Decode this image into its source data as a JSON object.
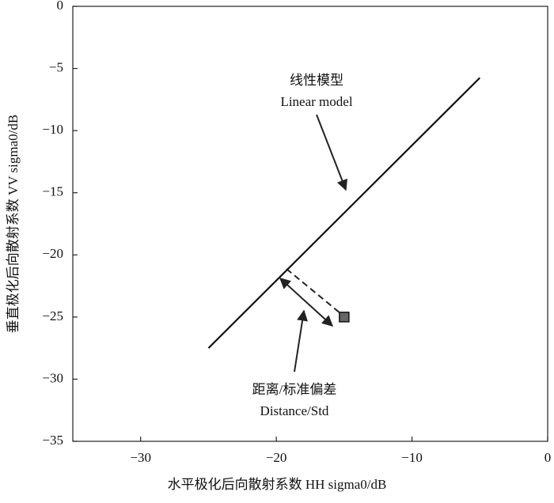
{
  "chart_data": {
    "type": "line",
    "xlabel": "水平极化后向散射系数 HH sigma0/dB",
    "ylabel": "垂直极化后向散射系数 VV sigma0/dB",
    "xlim": [
      -35,
      0
    ],
    "ylim": [
      -35,
      0
    ],
    "xticks": [
      {
        "value": -30,
        "label": "−30"
      },
      {
        "value": -20,
        "label": "−20"
      },
      {
        "value": -10,
        "label": "−10"
      },
      0
    ],
    "yticks": [
      {
        "value": -35,
        "label": "−35"
      },
      {
        "value": -30,
        "label": "−30"
      },
      {
        "value": -25,
        "label": "−25"
      },
      {
        "value": -20,
        "label": "−20"
      },
      {
        "value": -15,
        "label": "−15"
      },
      {
        "value": -10,
        "label": "−10"
      },
      {
        "value": -5,
        "label": "−5"
      },
      0
    ],
    "series": [
      {
        "x": [
          -25,
          -5
        ],
        "values": [
          -27.5,
          -5.75
        ],
        "color": "#111111"
      },
      {
        "x": [
          -15
        ],
        "values": [
          -25
        ],
        "color": "#666666",
        "marker": "square"
      }
    ],
    "annotations": [
      {
        "lines": [
          "线性模型",
          "Linear model"
        ]
      },
      {
        "lines": [
          "距离/标准偏差",
          "Distance/Std"
        ]
      }
    ]
  }
}
